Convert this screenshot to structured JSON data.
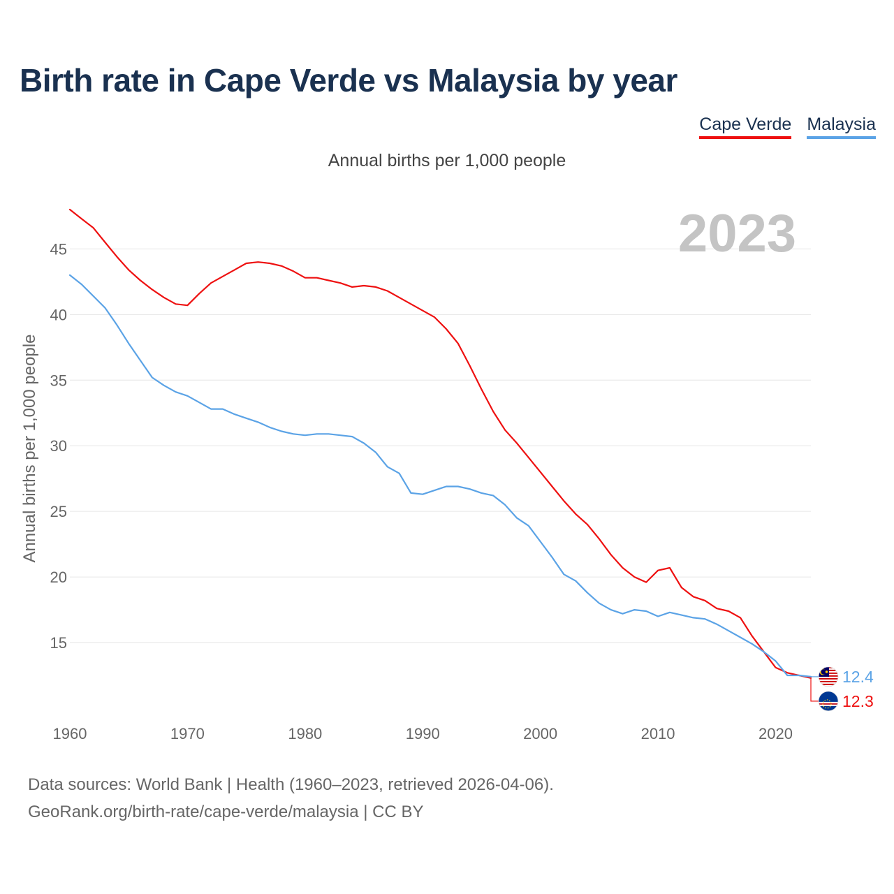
{
  "title": "Birth rate in Cape Verde vs Malaysia by year",
  "subtitle": "Annual births per 1,000 people",
  "legend": [
    {
      "label": "Cape Verde",
      "color": "#ee1111"
    },
    {
      "label": "Malaysia",
      "color": "#5ba3e6"
    }
  ],
  "footer": {
    "line1": "Data sources: World Bank | Health (1960–2023, retrieved 2026-04-06).",
    "line2": "GeoRank.org/birth-rate/cape-verde/malaysia | CC BY"
  },
  "chart_data": {
    "type": "line",
    "title": "Birth rate in Cape Verde vs Malaysia by year",
    "year_label": "2023",
    "xlabel": "",
    "ylabel": "Annual births per 1,000 people",
    "xlim": [
      1960,
      2023
    ],
    "ylim": [
      10,
      48
    ],
    "x_ticks": [
      1960,
      1970,
      1980,
      1990,
      2000,
      2010,
      2020
    ],
    "y_ticks": [
      15,
      20,
      25,
      30,
      35,
      40,
      45
    ],
    "grid": true,
    "x": [
      1960,
      1961,
      1962,
      1963,
      1964,
      1965,
      1966,
      1967,
      1968,
      1969,
      1970,
      1971,
      1972,
      1973,
      1974,
      1975,
      1976,
      1977,
      1978,
      1979,
      1980,
      1981,
      1982,
      1983,
      1984,
      1985,
      1986,
      1987,
      1988,
      1989,
      1990,
      1991,
      1992,
      1993,
      1994,
      1995,
      1996,
      1997,
      1998,
      1999,
      2000,
      2001,
      2002,
      2003,
      2004,
      2005,
      2006,
      2007,
      2008,
      2009,
      2010,
      2011,
      2012,
      2013,
      2014,
      2015,
      2016,
      2017,
      2018,
      2019,
      2020,
      2021,
      2022,
      2023
    ],
    "series": [
      {
        "name": "Cape Verde",
        "color": "#ee1111",
        "end_label": "12.3",
        "values": [
          48.0,
          47.3,
          46.6,
          45.5,
          44.4,
          43.4,
          42.6,
          41.9,
          41.3,
          40.8,
          40.7,
          41.6,
          42.4,
          42.9,
          43.4,
          43.9,
          44.0,
          43.9,
          43.7,
          43.3,
          42.8,
          42.8,
          42.6,
          42.4,
          42.1,
          42.2,
          42.1,
          41.8,
          41.3,
          40.8,
          40.3,
          39.8,
          38.9,
          37.8,
          36.1,
          34.3,
          32.6,
          31.2,
          30.2,
          29.1,
          28.0,
          26.9,
          25.8,
          24.8,
          24.0,
          22.9,
          21.7,
          20.7,
          20.0,
          19.6,
          20.5,
          20.7,
          19.2,
          18.5,
          18.2,
          17.6,
          17.4,
          16.9,
          15.5,
          14.3,
          13.1,
          12.7,
          12.5,
          12.3
        ]
      },
      {
        "name": "Malaysia",
        "color": "#5ba3e6",
        "end_label": "12.4",
        "values": [
          43.0,
          42.3,
          41.4,
          40.5,
          39.2,
          37.8,
          36.5,
          35.2,
          34.6,
          34.1,
          33.8,
          33.3,
          32.8,
          32.8,
          32.4,
          32.1,
          31.8,
          31.4,
          31.1,
          30.9,
          30.8,
          30.9,
          30.9,
          30.8,
          30.7,
          30.2,
          29.5,
          28.4,
          27.9,
          26.4,
          26.3,
          26.6,
          26.9,
          26.9,
          26.7,
          26.4,
          26.2,
          25.5,
          24.5,
          23.9,
          22.7,
          21.5,
          20.2,
          19.7,
          18.8,
          18.0,
          17.5,
          17.2,
          17.5,
          17.4,
          17.0,
          17.3,
          17.1,
          16.9,
          16.8,
          16.4,
          15.9,
          15.4,
          14.9,
          14.3,
          13.6,
          12.5,
          12.5,
          12.4
        ]
      }
    ]
  }
}
